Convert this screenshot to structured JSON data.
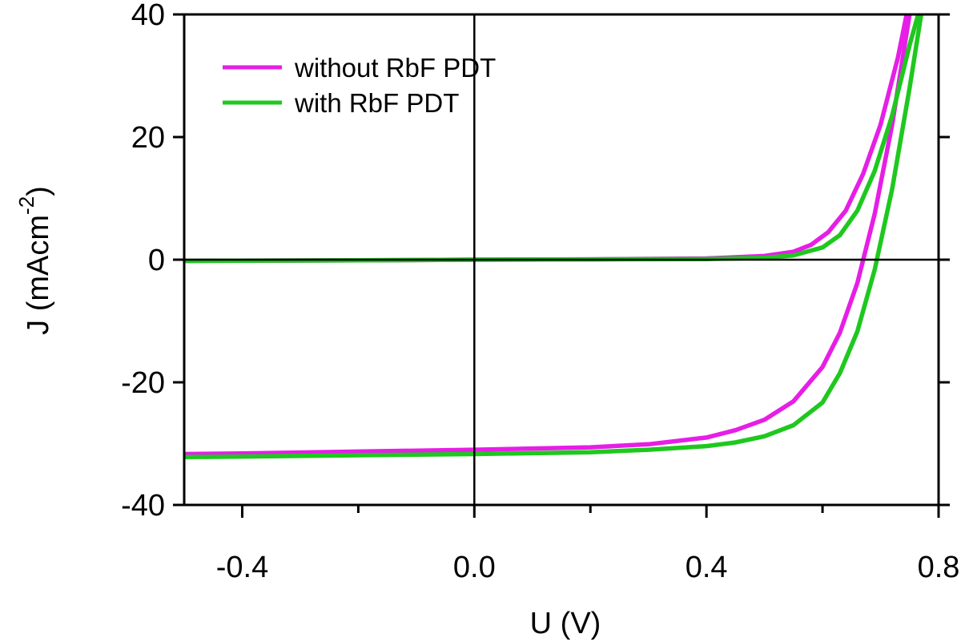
{
  "chart_data": {
    "type": "line",
    "xlabel": "U (V)",
    "ylabel": "J (mAcm",
    "ylabel_superscript": "-2",
    "ylabel_suffix": ")",
    "xlim": [
      -0.5,
      0.8
    ],
    "ylim": [
      -40,
      40
    ],
    "x_ticks": [
      {
        "value": -0.4,
        "label": "-0.4"
      },
      {
        "value": 0.0,
        "label": "0.0"
      },
      {
        "value": 0.4,
        "label": "0.4"
      },
      {
        "value": 0.8,
        "label": "0.8"
      }
    ],
    "x_minor_ticks": [
      -0.2,
      0.2,
      0.6
    ],
    "y_ticks": [
      {
        "value": -40,
        "label": "-40"
      },
      {
        "value": -20,
        "label": "-20"
      },
      {
        "value": 0,
        "label": "0"
      },
      {
        "value": 20,
        "label": "20"
      },
      {
        "value": 40,
        "label": "40"
      }
    ],
    "zero_lines": true,
    "legend_position": "top-left",
    "series": [
      {
        "name": "without RbF PDT",
        "curve": "illuminated",
        "color": "#e61ee6",
        "x": [
          -0.5,
          -0.4,
          -0.2,
          0.0,
          0.2,
          0.3,
          0.4,
          0.45,
          0.5,
          0.55,
          0.6,
          0.63,
          0.66,
          0.69,
          0.72,
          0.75
        ],
        "y": [
          -31.7,
          -31.6,
          -31.3,
          -31.0,
          -30.6,
          -30.1,
          -29.0,
          -27.8,
          -26.1,
          -23.1,
          -17.5,
          -11.9,
          -3.8,
          7.5,
          22.0,
          40.0
        ]
      },
      {
        "name": "without RbF PDT",
        "curve": "dark",
        "color": "#e61ee6",
        "x": [
          -0.5,
          -0.2,
          0.0,
          0.2,
          0.4,
          0.5,
          0.55,
          0.58,
          0.61,
          0.64,
          0.67,
          0.7,
          0.73,
          0.745
        ],
        "y": [
          -0.2,
          -0.1,
          0.0,
          0.05,
          0.2,
          0.6,
          1.3,
          2.4,
          4.5,
          8.0,
          14.0,
          22.0,
          33.0,
          40.0
        ]
      },
      {
        "name": "with RbF PDT",
        "curve": "illuminated",
        "color": "#1ec81e",
        "x": [
          -0.5,
          -0.4,
          -0.2,
          0.0,
          0.2,
          0.3,
          0.4,
          0.45,
          0.5,
          0.55,
          0.6,
          0.63,
          0.66,
          0.69,
          0.72,
          0.75,
          0.77
        ],
        "y": [
          -32.2,
          -32.1,
          -31.9,
          -31.7,
          -31.4,
          -31.0,
          -30.4,
          -29.8,
          -28.8,
          -27.0,
          -23.3,
          -18.5,
          -11.7,
          -1.6,
          11.5,
          28.0,
          40.0
        ]
      },
      {
        "name": "with RbF PDT",
        "curve": "dark",
        "color": "#1ec81e",
        "x": [
          -0.5,
          -0.2,
          0.0,
          0.2,
          0.4,
          0.5,
          0.55,
          0.6,
          0.63,
          0.66,
          0.69,
          0.72,
          0.75,
          0.765
        ],
        "y": [
          -0.2,
          -0.1,
          0.0,
          0.05,
          0.1,
          0.3,
          0.7,
          2.0,
          4.0,
          8.0,
          14.5,
          23.5,
          35.0,
          40.0
        ]
      }
    ],
    "legend": [
      {
        "label": "without RbF PDT",
        "color": "#e61ee6"
      },
      {
        "label": "with RbF PDT",
        "color": "#1ec81e"
      }
    ]
  }
}
